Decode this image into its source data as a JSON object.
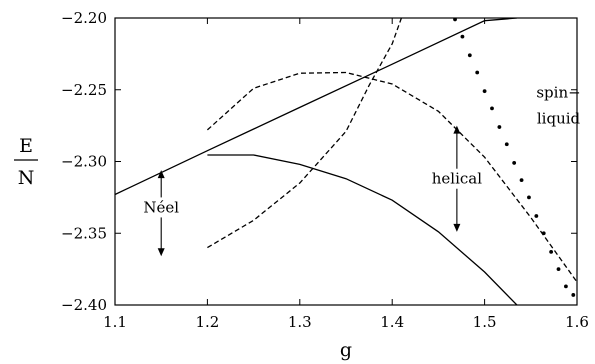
{
  "chart_data": {
    "type": "line",
    "title": "",
    "xlabel": "g",
    "ylabel": {
      "numerator": "E",
      "denominator": "N"
    },
    "xlim": [
      1.1,
      1.6
    ],
    "ylim": [
      -2.4,
      -2.2
    ],
    "x_ticks": [
      1.1,
      1.2,
      1.3,
      1.4,
      1.5,
      1.6
    ],
    "x_tick_labels": [
      "1.1",
      "1.2",
      "1.3",
      "1.4",
      "1.5",
      "1.6"
    ],
    "y_ticks": [
      -2.2,
      -2.25,
      -2.3,
      -2.35,
      -2.4
    ],
    "y_tick_labels": [
      "−2.20",
      "−2.25",
      "−2.30",
      "−2.35",
      "−2.40"
    ],
    "grid": false,
    "legend": "none",
    "series": [
      {
        "style": "solid",
        "x": [
          1.1,
          1.2,
          1.3,
          1.4,
          1.5,
          1.535
        ],
        "y": [
          -2.323,
          -2.2925,
          -2.2623,
          -2.2322,
          -2.2019,
          -2.2
        ]
      },
      {
        "style": "solid",
        "x": [
          1.2,
          1.25,
          1.3,
          1.35,
          1.4,
          1.45,
          1.5,
          1.535
        ],
        "y": [
          -2.2955,
          -2.2955,
          -2.302,
          -2.312,
          -2.327,
          -2.349,
          -2.377,
          -2.4
        ]
      },
      {
        "style": "dashed",
        "x": [
          1.2,
          1.25,
          1.3,
          1.35,
          1.4,
          1.45,
          1.5,
          1.55,
          1.6
        ],
        "y": [
          -2.278,
          -2.249,
          -2.2385,
          -2.238,
          -2.246,
          -2.265,
          -2.297,
          -2.339,
          -2.384
        ]
      },
      {
        "style": "dashed",
        "x": [
          1.2,
          1.25,
          1.3,
          1.35,
          1.375,
          1.4,
          1.41
        ],
        "y": [
          -2.36,
          -2.341,
          -2.315,
          -2.279,
          -2.247,
          -2.218,
          -2.2
        ]
      },
      {
        "style": "dotted",
        "x": [
          1.468,
          1.476,
          1.484,
          1.492,
          1.5,
          1.508,
          1.516,
          1.524,
          1.532,
          1.54,
          1.548,
          1.556,
          1.564,
          1.572,
          1.58,
          1.588,
          1.596
        ],
        "y": [
          -2.201,
          -2.213,
          -2.226,
          -2.238,
          -2.251,
          -2.263,
          -2.276,
          -2.288,
          -2.301,
          -2.313,
          -2.325,
          -2.338,
          -2.35,
          -2.363,
          -2.375,
          -2.387,
          -2.393
        ]
      }
    ],
    "annotations": [
      {
        "text": "Néel",
        "x": 1.15,
        "y": -2.332,
        "arrow_from": -2.306,
        "arrow_to": -2.366
      },
      {
        "text": "helical",
        "x": 1.47,
        "y": -2.312,
        "arrow_from": -2.275,
        "arrow_to": -2.349
      },
      {
        "text": "spin−",
        "x": 1.58,
        "y": -2.252
      },
      {
        "text": "liquid",
        "x": 1.58,
        "y": -2.27
      }
    ]
  }
}
